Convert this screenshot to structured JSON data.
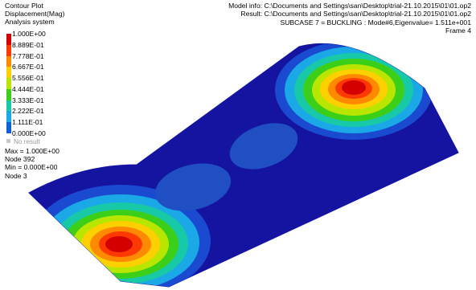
{
  "legend": {
    "title": "Contour Plot",
    "quantity": "Displacement(Mag)",
    "system": "Analysis system",
    "labels": [
      "1.000E+00",
      "8.889E-01",
      "7.778E-01",
      "6.667E-01",
      "5.556E-01",
      "4.444E-01",
      "3.333E-01",
      "2.222E-01",
      "1.111E-01",
      "0.000E+00"
    ],
    "colors": [
      "#d40000",
      "#ff3a00",
      "#ff8a00",
      "#ffd000",
      "#b8e600",
      "#3ccf1a",
      "#18c9a8",
      "#1aa8e6",
      "#1060d8",
      "#101aa0"
    ],
    "no_result": "No result",
    "no_result_color": "#c8c8c8"
  },
  "stats": {
    "max": "Max = 1.000E+00",
    "max_node": "Node 392",
    "min": "Min = 0.000E+00",
    "min_node": "Node 3"
  },
  "info": {
    "model_info": "Model info: C:\\Documents and Settings\\san\\Desktop\\trial-21.10.2015\\01\\01.op2",
    "result": "Result: C:\\Documents and Settings\\san\\Desktop\\trial-21.10.2015\\01\\01.op2",
    "subcase": "SUBCASE 7 = BUCKLING   : Mode#6,Eigenvalue=  1.511e+001",
    "frame": "Frame 4"
  },
  "plate_color": "#1414a0"
}
